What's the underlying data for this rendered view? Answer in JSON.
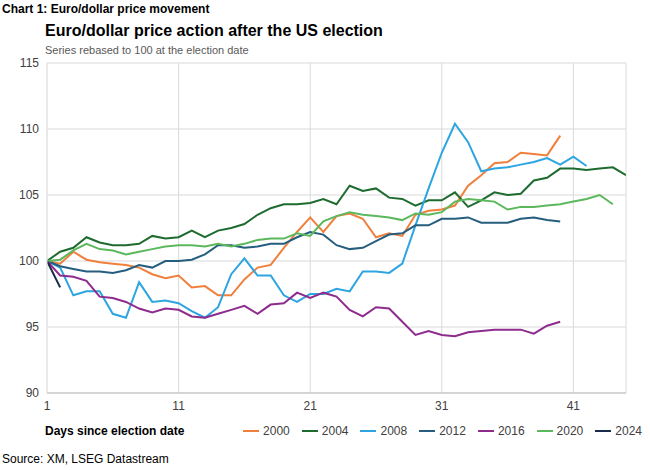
{
  "chart_data": {
    "type": "line",
    "caption": "Chart 1: Euro/dollar price movement",
    "title": "Euro/dollar price action after the US election",
    "subtitle": "Series rebased to 100 at the election date",
    "x_label": "Days since election date",
    "source": "Source: XM, LSEG Datastream",
    "x": [
      1,
      2,
      3,
      4,
      5,
      6,
      7,
      8,
      9,
      10,
      11,
      12,
      13,
      14,
      15,
      16,
      17,
      18,
      19,
      20,
      21,
      22,
      23,
      24,
      25,
      26,
      27,
      28,
      29,
      30,
      31,
      32,
      33,
      34,
      35,
      36,
      37,
      38,
      39,
      40,
      41,
      42,
      43,
      44,
      45
    ],
    "xlim": [
      1,
      45
    ],
    "xticks": [
      1,
      11,
      21,
      31,
      41
    ],
    "ylim": [
      90,
      115
    ],
    "yticks": [
      90,
      95,
      100,
      105,
      110,
      115
    ],
    "grid": true,
    "legend": "bottom-right",
    "series": [
      {
        "name": "2000",
        "color": "#f07f3c",
        "values": [
          100,
          99.8,
          100.7,
          100.1,
          99.9,
          99.8,
          99.7,
          99.5,
          99,
          98.7,
          98.9,
          98,
          98.1,
          97.4,
          97.4,
          98.6,
          99.5,
          99.7,
          101,
          102.2,
          103.3,
          102.2,
          103.4,
          103.6,
          103.2,
          101.8,
          102.1,
          101.9,
          103.5,
          103.8,
          103.9,
          104.2,
          105.7,
          106.5,
          107.4,
          107.5,
          108.2,
          108.1,
          108,
          109.5,
          null,
          null,
          null,
          null,
          null
        ]
      },
      {
        "name": "2004",
        "color": "#1e6b30",
        "values": [
          100,
          100.7,
          101,
          101.8,
          101.4,
          101.2,
          101.2,
          101.3,
          101.9,
          101.7,
          101.8,
          102.3,
          101.8,
          102.3,
          102.5,
          102.8,
          103.5,
          104,
          104.3,
          104.3,
          104.4,
          104.7,
          104.3,
          105.7,
          105.3,
          105.5,
          104.8,
          104.7,
          104.2,
          104.6,
          104.6,
          105.2,
          104.1,
          104.6,
          105.2,
          105,
          105.1,
          106.1,
          106.3,
          107,
          107,
          106.9,
          107,
          107.1,
          106.5
        ]
      },
      {
        "name": "2008",
        "color": "#2ca5e0",
        "values": [
          100,
          99.5,
          97.4,
          97.7,
          97.7,
          96,
          95.7,
          98.4,
          96.9,
          97,
          96.8,
          96.2,
          95.7,
          96.5,
          99,
          100.2,
          98.9,
          98.9,
          97.4,
          96.9,
          97.5,
          97.5,
          97.9,
          97.7,
          99.2,
          99.2,
          99.1,
          99.8,
          102.7,
          105.5,
          108.2,
          110.4,
          109,
          106.8,
          107,
          107.1,
          107.3,
          107.5,
          107.8,
          107.3,
          107.9,
          107.2,
          null,
          null,
          null
        ]
      },
      {
        "name": "2012",
        "color": "#255e7e",
        "values": [
          100,
          99.6,
          99.4,
          99.2,
          99.2,
          99.1,
          99.3,
          99.7,
          99.5,
          100,
          100,
          100.1,
          100.5,
          101.2,
          101.2,
          101,
          101.1,
          101.3,
          101.3,
          101.8,
          102.2,
          102,
          101.2,
          100.9,
          101,
          101.5,
          102,
          102.1,
          102.7,
          102.7,
          103.2,
          103.2,
          103.3,
          102.9,
          102.9,
          102.9,
          103.2,
          103.3,
          103.1,
          103,
          null,
          null,
          null,
          null,
          null
        ]
      },
      {
        "name": "2016",
        "color": "#8e2c8e",
        "values": [
          100,
          98.9,
          98.8,
          98.5,
          97.3,
          97.2,
          96.9,
          96.4,
          96.1,
          96.4,
          96.3,
          95.8,
          95.7,
          96,
          96.3,
          96.6,
          96,
          96.7,
          96.8,
          97.6,
          97.2,
          97.6,
          97.3,
          96.3,
          95.8,
          96.5,
          96.4,
          95.4,
          94.4,
          94.7,
          94.4,
          94.3,
          94.6,
          94.7,
          94.8,
          94.8,
          94.8,
          94.5,
          95.1,
          95.4,
          null,
          null,
          null,
          null,
          null
        ]
      },
      {
        "name": "2020",
        "color": "#5cb85c",
        "values": [
          100,
          100.1,
          100.8,
          101.3,
          100.9,
          100.8,
          100.5,
          100.7,
          100.9,
          101.1,
          101.2,
          101.2,
          101.1,
          101.3,
          101.1,
          101.3,
          101.6,
          101.7,
          101.7,
          102.1,
          101.9,
          103,
          103.4,
          103.7,
          103.5,
          103.4,
          103.3,
          103.1,
          103.6,
          103.5,
          103.7,
          104.5,
          104.7,
          104.6,
          104.5,
          103.9,
          104.1,
          104.1,
          104.2,
          104.3,
          104.5,
          104.7,
          105,
          104.3,
          null
        ]
      },
      {
        "name": "2024",
        "color": "#1a2a4a",
        "values": [
          100,
          98,
          null,
          null,
          null,
          null,
          null,
          null,
          null,
          null,
          null,
          null,
          null,
          null,
          null,
          null,
          null,
          null,
          null,
          null,
          null,
          null,
          null,
          null,
          null,
          null,
          null,
          null,
          null,
          null,
          null,
          null,
          null,
          null,
          null,
          null,
          null,
          null,
          null,
          null,
          null,
          null,
          null,
          null,
          null
        ]
      }
    ]
  }
}
